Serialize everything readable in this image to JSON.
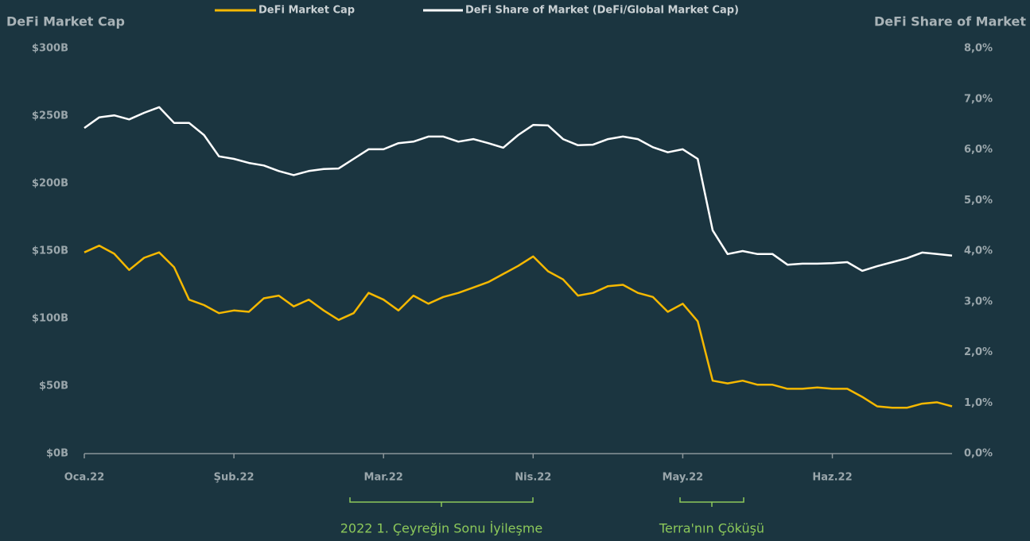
{
  "chart_data": {
    "type": "line",
    "y_label": "DeFi Market Cap",
    "y2_label": "DeFi Share of Market",
    "categories": [
      "Oca.22",
      null,
      null,
      null,
      null,
      null,
      null,
      null,
      null,
      null,
      "Şub.22",
      null,
      null,
      null,
      null,
      null,
      null,
      null,
      null,
      null,
      "Mar.22",
      null,
      null,
      null,
      null,
      null,
      null,
      null,
      null,
      null,
      "Nis.22",
      null,
      null,
      null,
      null,
      null,
      null,
      null,
      null,
      null,
      "May.22",
      null,
      null,
      null,
      null,
      null,
      null,
      null,
      null,
      null,
      "Haz.22",
      null,
      null,
      null,
      null,
      null,
      null,
      null,
      null
    ],
    "series": [
      {
        "name": "DeFi Market Cap",
        "color": "#f5b800",
        "values": [
          149,
          154,
          148,
          136,
          145,
          149,
          138,
          114,
          110,
          104,
          106,
          105,
          115,
          117,
          109,
          114,
          106,
          99,
          104,
          119,
          114,
          106,
          117,
          111,
          116,
          119,
          123,
          127,
          133,
          139,
          146,
          135,
          129,
          117,
          119,
          124,
          125,
          119,
          116,
          105,
          111,
          98,
          54,
          52,
          54,
          51,
          51,
          48,
          48,
          49,
          48,
          48,
          42,
          35,
          34,
          34,
          37,
          38,
          35
        ]
      },
      {
        "name": "DeFi Share of Market (DeFi/Global Market Cap)",
        "color": "#ffffff",
        "axis": "y2",
        "values": [
          6.43,
          6.64,
          6.68,
          6.6,
          6.73,
          6.84,
          6.53,
          6.53,
          6.29,
          5.87,
          5.82,
          5.74,
          5.69,
          5.58,
          5.5,
          5.58,
          5.62,
          5.63,
          5.82,
          6.01,
          6.01,
          6.13,
          6.16,
          6.26,
          6.26,
          6.16,
          6.21,
          6.13,
          6.04,
          6.29,
          6.49,
          6.48,
          6.21,
          6.09,
          6.1,
          6.21,
          6.26,
          6.21,
          6.05,
          5.95,
          6.01,
          5.82,
          4.41,
          3.94,
          4.0,
          3.94,
          3.94,
          3.73,
          3.75,
          3.75,
          3.76,
          3.78,
          3.61,
          3.7,
          3.78,
          3.86,
          3.97,
          3.94,
          3.91
        ]
      }
    ],
    "ylim": [
      0,
      300
    ],
    "yticks": [
      {
        "value": 0,
        "label": "$0B"
      },
      {
        "value": 50,
        "label": "$50B"
      },
      {
        "value": 100,
        "label": "$100B"
      },
      {
        "value": 150,
        "label": "$150B"
      },
      {
        "value": 200,
        "label": "$200B"
      },
      {
        "value": 250,
        "label": "$250B"
      },
      {
        "value": 300,
        "label": "$300B"
      }
    ],
    "y2lim": [
      0,
      8
    ],
    "y2ticks": [
      {
        "value": 0,
        "label": "0,0%"
      },
      {
        "value": 1,
        "label": "1,0%"
      },
      {
        "value": 2,
        "label": "2,0%"
      },
      {
        "value": 3,
        "label": "3,0%"
      },
      {
        "value": 4,
        "label": "4,0%"
      },
      {
        "value": 5,
        "label": "5,0%"
      },
      {
        "value": 6,
        "label": "6,0%"
      },
      {
        "value": 7,
        "label": "7,0%"
      },
      {
        "value": 8,
        "label": "8,0%"
      }
    ],
    "annotations": [
      {
        "text": "2022 1. Çeyreğin Sonu İyileşme"
      },
      {
        "text": "Terra'nın Çöküşü"
      }
    ]
  }
}
